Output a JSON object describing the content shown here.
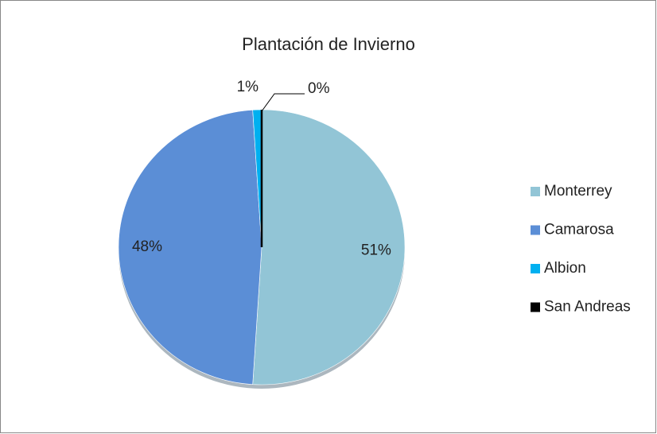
{
  "chart_data": {
    "type": "pie",
    "title": "Plantación de Invierno",
    "categories": [
      "Monterrey",
      "Camarosa",
      "Albion",
      "San Andreas"
    ],
    "values": [
      51,
      48,
      1,
      0
    ],
    "value_labels": [
      "51%",
      "48%",
      "1%",
      "0%"
    ],
    "colors": [
      "#92c5d6",
      "#5b8ed6",
      "#00b0f0",
      "#000000"
    ],
    "legend": "right"
  }
}
